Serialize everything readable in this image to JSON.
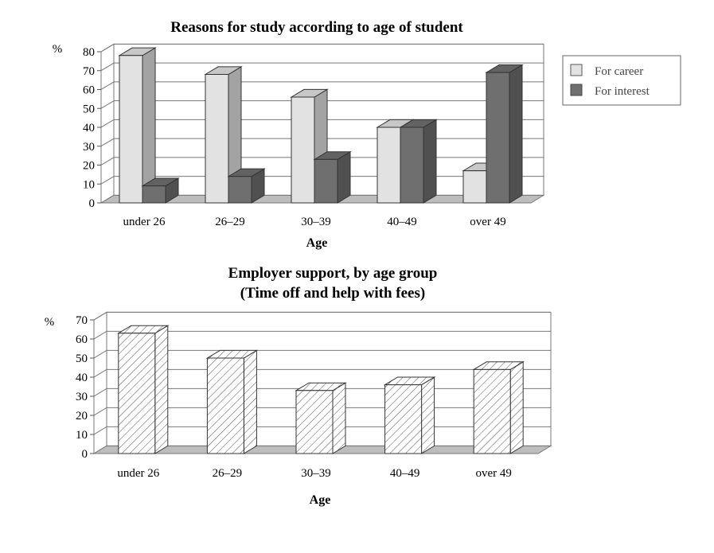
{
  "chart_data": [
    {
      "type": "bar",
      "title": "Reasons for study according to age of student",
      "ylabel": "%",
      "xlabel": "Age",
      "categories": [
        "under 26",
        "26–29",
        "30–39",
        "40–49",
        "over 49"
      ],
      "series": [
        {
          "name": "For career",
          "values": [
            78,
            68,
            56,
            40,
            17
          ],
          "color": "#e2e2e2"
        },
        {
          "name": "For interest",
          "values": [
            9,
            14,
            23,
            40,
            69
          ],
          "color": "#6f6f6f"
        }
      ],
      "ylim": [
        0,
        80
      ],
      "yticks": [
        0,
        10,
        20,
        30,
        40,
        50,
        60,
        70,
        80
      ],
      "grid": true,
      "legend_position": "right"
    },
    {
      "type": "bar",
      "title": "Employer support, by age group",
      "subtitle": "(Time off and help with fees)",
      "ylabel": "%",
      "xlabel": "Age",
      "categories": [
        "under 26",
        "26–29",
        "30–39",
        "40–49",
        "over 49"
      ],
      "series": [
        {
          "values": [
            63,
            50,
            33,
            36,
            44
          ],
          "color": "#ffffff"
        }
      ],
      "ylim": [
        0,
        70
      ],
      "yticks": [
        0,
        10,
        20,
        30,
        40,
        50,
        60,
        70
      ],
      "grid": true,
      "hatched": true
    }
  ]
}
